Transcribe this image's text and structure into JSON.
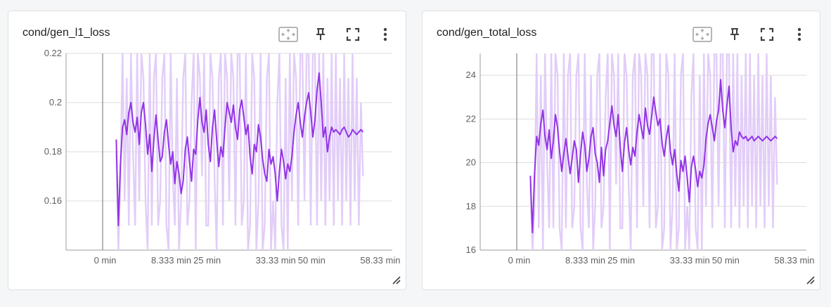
{
  "colors": {
    "raw": "#e2cdf8",
    "smoothed": "#9334e6",
    "grid": "#dddddd",
    "axis": "#9e9e9e",
    "tick_text": "#616161"
  },
  "icons": [
    "fit-domain-icon",
    "pin-icon",
    "fullscreen-icon",
    "more-vert-icon",
    "resize-handle-icon"
  ],
  "chart_data": [
    {
      "type": "line",
      "title": "cond/gen_l1_loss",
      "xlabel": "",
      "ylabel": "",
      "xlim_min": [
        -12,
        66
      ],
      "ylim": [
        0.14,
        0.22
      ],
      "yticks": [
        0.16,
        0.18,
        0.2,
        0.22
      ],
      "ytick_labels": [
        "0.16",
        "0.18",
        "0.2",
        "0.22"
      ],
      "xticks_min": [
        0,
        8.333,
        25,
        33.33,
        50,
        58.33
      ],
      "xtick_labels": [
        "0 min",
        "8.333 min",
        "25 min",
        "33.33 min",
        "50 min",
        "58.33 min"
      ],
      "grid": true,
      "series": [
        {
          "role": "smoothed",
          "x_min": [
            0,
            0.5,
            1,
            1.5,
            2,
            2.5,
            3,
            3.5,
            4,
            4.5,
            5,
            5.5,
            6,
            6.5,
            7,
            7.5,
            8,
            8.5,
            9,
            9.5,
            10,
            10.5,
            11,
            11.5,
            12,
            12.5,
            13,
            13.5,
            14,
            14.5,
            15,
            15.5,
            16,
            16.5,
            17,
            17.5,
            18,
            18.5,
            19,
            19.5,
            20,
            20.5,
            21,
            21.5,
            22,
            22.5,
            23,
            23.5,
            24,
            24.5,
            25,
            25.5,
            26,
            26.5,
            27,
            27.5,
            28,
            28.5,
            29,
            29.5,
            30,
            30.5,
            31,
            31.5,
            32,
            32.5,
            33,
            33.5,
            34,
            34.5,
            35,
            35.5,
            36,
            36.5,
            37,
            37.5,
            38,
            38.5,
            39,
            39.5,
            40,
            40.5,
            41,
            41.5,
            42,
            42.5,
            43,
            43.5,
            44,
            44.5,
            45,
            45.5,
            46,
            46.5,
            47,
            47.5,
            48,
            48.5,
            49,
            49.5,
            50,
            50.5,
            51,
            51.5,
            52,
            52.5,
            53,
            53.5,
            54,
            54.5,
            55,
            55.5,
            56,
            56.5,
            57,
            57.5,
            58,
            58.5,
            59
          ],
          "values": [
            0.185,
            0.15,
            0.175,
            0.19,
            0.193,
            0.187,
            0.196,
            0.2,
            0.192,
            0.188,
            0.194,
            0.183,
            0.196,
            0.2,
            0.191,
            0.179,
            0.187,
            0.172,
            0.185,
            0.195,
            0.185,
            0.176,
            0.178,
            0.188,
            0.193,
            0.183,
            0.175,
            0.18,
            0.167,
            0.176,
            0.171,
            0.163,
            0.168,
            0.181,
            0.186,
            0.176,
            0.168,
            0.181,
            0.179,
            0.193,
            0.202,
            0.192,
            0.188,
            0.197,
            0.183,
            0.176,
            0.19,
            0.197,
            0.185,
            0.174,
            0.182,
            0.178,
            0.19,
            0.2,
            0.196,
            0.192,
            0.199,
            0.19,
            0.185,
            0.197,
            0.201,
            0.194,
            0.187,
            0.191,
            0.178,
            0.171,
            0.183,
            0.18,
            0.191,
            0.186,
            0.177,
            0.171,
            0.168,
            0.181,
            0.175,
            0.178,
            0.171,
            0.16,
            0.172,
            0.181,
            0.176,
            0.169,
            0.175,
            0.172,
            0.178,
            0.188,
            0.195,
            0.2,
            0.192,
            0.186,
            0.194,
            0.2,
            0.204,
            0.196,
            0.186,
            0.193,
            0.205,
            0.212,
            0.2,
            0.186,
            0.19,
            0.18,
            0.186,
            0.19,
            0.188,
            0.189,
            0.188,
            0.187,
            0.189,
            0.19,
            0.188,
            0.186,
            0.187,
            0.189,
            0.188,
            0.187,
            0.188,
            0.189,
            0.188
          ],
          "visible_until_min": 40
        },
        {
          "role": "raw",
          "values": [
            0.18,
            0.14,
            0.17,
            0.22,
            0.16,
            0.21,
            0.15,
            0.22,
            0.18,
            0.15,
            0.22,
            0.16,
            0.22,
            0.21,
            0.16,
            0.14,
            0.22,
            0.15,
            0.21,
            0.22,
            0.15,
            0.16,
            0.21,
            0.22,
            0.15,
            0.14,
            0.22,
            0.17,
            0.15,
            0.21,
            0.14,
            0.16,
            0.21,
            0.22,
            0.15,
            0.16,
            0.2,
            0.22,
            0.14,
            0.22,
            0.21,
            0.17,
            0.22,
            0.15,
            0.15,
            0.22,
            0.21,
            0.17,
            0.14,
            0.21,
            0.22,
            0.15,
            0.22,
            0.21,
            0.16,
            0.22,
            0.21,
            0.15,
            0.22,
            0.22,
            0.15,
            0.16,
            0.22,
            0.14,
            0.15,
            0.22,
            0.21,
            0.14,
            0.16,
            0.22,
            0.14,
            0.15,
            0.21,
            0.22,
            0.14,
            0.16,
            0.14,
            0.2,
            0.22,
            0.15,
            0.14,
            0.21,
            0.14,
            0.22,
            0.16,
            0.22,
            0.21,
            0.15,
            0.22,
            0.22,
            0.16,
            0.22,
            0.22,
            0.15,
            0.22,
            0.22,
            0.15,
            0.22,
            0.16,
            0.22,
            0.15,
            0.21,
            0.16,
            0.22,
            0.15,
            0.22,
            0.16,
            0.21,
            0.15,
            0.22,
            0.16,
            0.21,
            0.15,
            0.22,
            0.16,
            0.21,
            0.15,
            0.2,
            0.17
          ]
        }
      ]
    },
    {
      "type": "line",
      "title": "cond/gen_total_loss",
      "xlabel": "",
      "ylabel": "",
      "xlim_min": [
        -12,
        66
      ],
      "ylim": [
        16,
        25
      ],
      "yticks": [
        16,
        18,
        20,
        22,
        24
      ],
      "ytick_labels": [
        "16",
        "18",
        "20",
        "22",
        "24"
      ],
      "xticks_min": [
        0,
        8.333,
        25,
        33.33,
        50,
        58.33
      ],
      "xtick_labels": [
        "0 min",
        "8.333 min",
        "25 min",
        "33.33 min",
        "50 min",
        "58.33 min"
      ],
      "grid": true,
      "series": [
        {
          "role": "smoothed",
          "x_min": [
            0,
            0.5,
            1,
            1.5,
            2,
            2.5,
            3,
            3.5,
            4,
            4.5,
            5,
            5.5,
            6,
            6.5,
            7,
            7.5,
            8,
            8.5,
            9,
            9.5,
            10,
            10.5,
            11,
            11.5,
            12,
            12.5,
            13,
            13.5,
            14,
            14.5,
            15,
            15.5,
            16,
            16.5,
            17,
            17.5,
            18,
            18.5,
            19,
            19.5,
            20,
            20.5,
            21,
            21.5,
            22,
            22.5,
            23,
            23.5,
            24,
            24.5,
            25,
            25.5,
            26,
            26.5,
            27,
            27.5,
            28,
            28.5,
            29,
            29.5,
            30,
            30.5,
            31,
            31.5,
            32,
            32.5,
            33,
            33.5,
            34,
            34.5,
            35,
            35.5,
            36,
            36.5,
            37,
            37.5,
            38,
            38.5,
            39,
            39.5,
            40,
            40.5,
            41,
            41.5,
            42,
            42.5,
            43,
            43.5,
            44,
            44.5,
            45,
            45.5,
            46,
            46.5,
            47,
            47.5,
            48,
            48.5,
            49,
            49.5,
            50,
            50.5,
            51,
            51.5,
            52,
            52.5,
            53,
            53.5,
            54,
            54.5,
            55,
            55.5,
            56,
            56.5,
            57,
            57.5,
            58,
            58.5,
            59
          ],
          "values": [
            19.4,
            16.8,
            19.5,
            21.2,
            20.8,
            21.8,
            22.4,
            21.2,
            20.6,
            21.5,
            20.2,
            21.0,
            22.2,
            21.6,
            20.5,
            19.6,
            20.4,
            21.1,
            20.3,
            19.5,
            20.2,
            21.0,
            20.6,
            19.1,
            20.4,
            21.4,
            20.8,
            19.6,
            20.2,
            21.2,
            21.6,
            20.4,
            20.0,
            19.1,
            20.7,
            19.4,
            20.6,
            21.0,
            21.8,
            22.6,
            21.7,
            21.2,
            22.2,
            20.7,
            19.6,
            20.9,
            21.6,
            20.6,
            19.9,
            20.7,
            20.3,
            21.4,
            22.2,
            21.6,
            21.1,
            22.5,
            21.7,
            21.3,
            22.1,
            23.0,
            22.3,
            21.7,
            22.0,
            20.9,
            20.3,
            21.1,
            21.7,
            20.5,
            19.9,
            20.6,
            19.5,
            18.7,
            20.1,
            19.6,
            20.3,
            19.3,
            18.2,
            19.8,
            20.3,
            19.7,
            18.9,
            19.6,
            19.3,
            19.9,
            21.1,
            21.8,
            22.2,
            21.6,
            21.0,
            21.9,
            22.4,
            23.8,
            22.4,
            21.6,
            22.6,
            23.5,
            21.6,
            20.5,
            21.0,
            20.8,
            21.4,
            21.2,
            21.1,
            21.2,
            21.0,
            21.1,
            21.2,
            21.0,
            21.1,
            21.2,
            21.1,
            21.0,
            21.1,
            21.2,
            21.1,
            21.0,
            21.1,
            21.2,
            21.1
          ],
          "visible_until_min": 40
        },
        {
          "role": "raw",
          "values": [
            19,
            16,
            18,
            25,
            17,
            24,
            16,
            25,
            20,
            17,
            25,
            17,
            25,
            24,
            17,
            16,
            25,
            17,
            24,
            25,
            17,
            18,
            24,
            25,
            17,
            16,
            25,
            19,
            17,
            24,
            16,
            18,
            24,
            25,
            17,
            18,
            23,
            25,
            16,
            25,
            24,
            19,
            25,
            17,
            17,
            25,
            24,
            19,
            16,
            24,
            25,
            17,
            25,
            24,
            18,
            25,
            24,
            17,
            25,
            25,
            17,
            18,
            25,
            16,
            17,
            25,
            24,
            16,
            18,
            25,
            16,
            17,
            24,
            25,
            16,
            18,
            16,
            23,
            25,
            17,
            16,
            24,
            16,
            25,
            18,
            25,
            24,
            17,
            25,
            25,
            18,
            25,
            25,
            17,
            25,
            25,
            17,
            25,
            18,
            25,
            17,
            24,
            18,
            25,
            17,
            25,
            18,
            24,
            17,
            25,
            18,
            24,
            17,
            25,
            18,
            24,
            17,
            23,
            19
          ]
        }
      ]
    }
  ]
}
